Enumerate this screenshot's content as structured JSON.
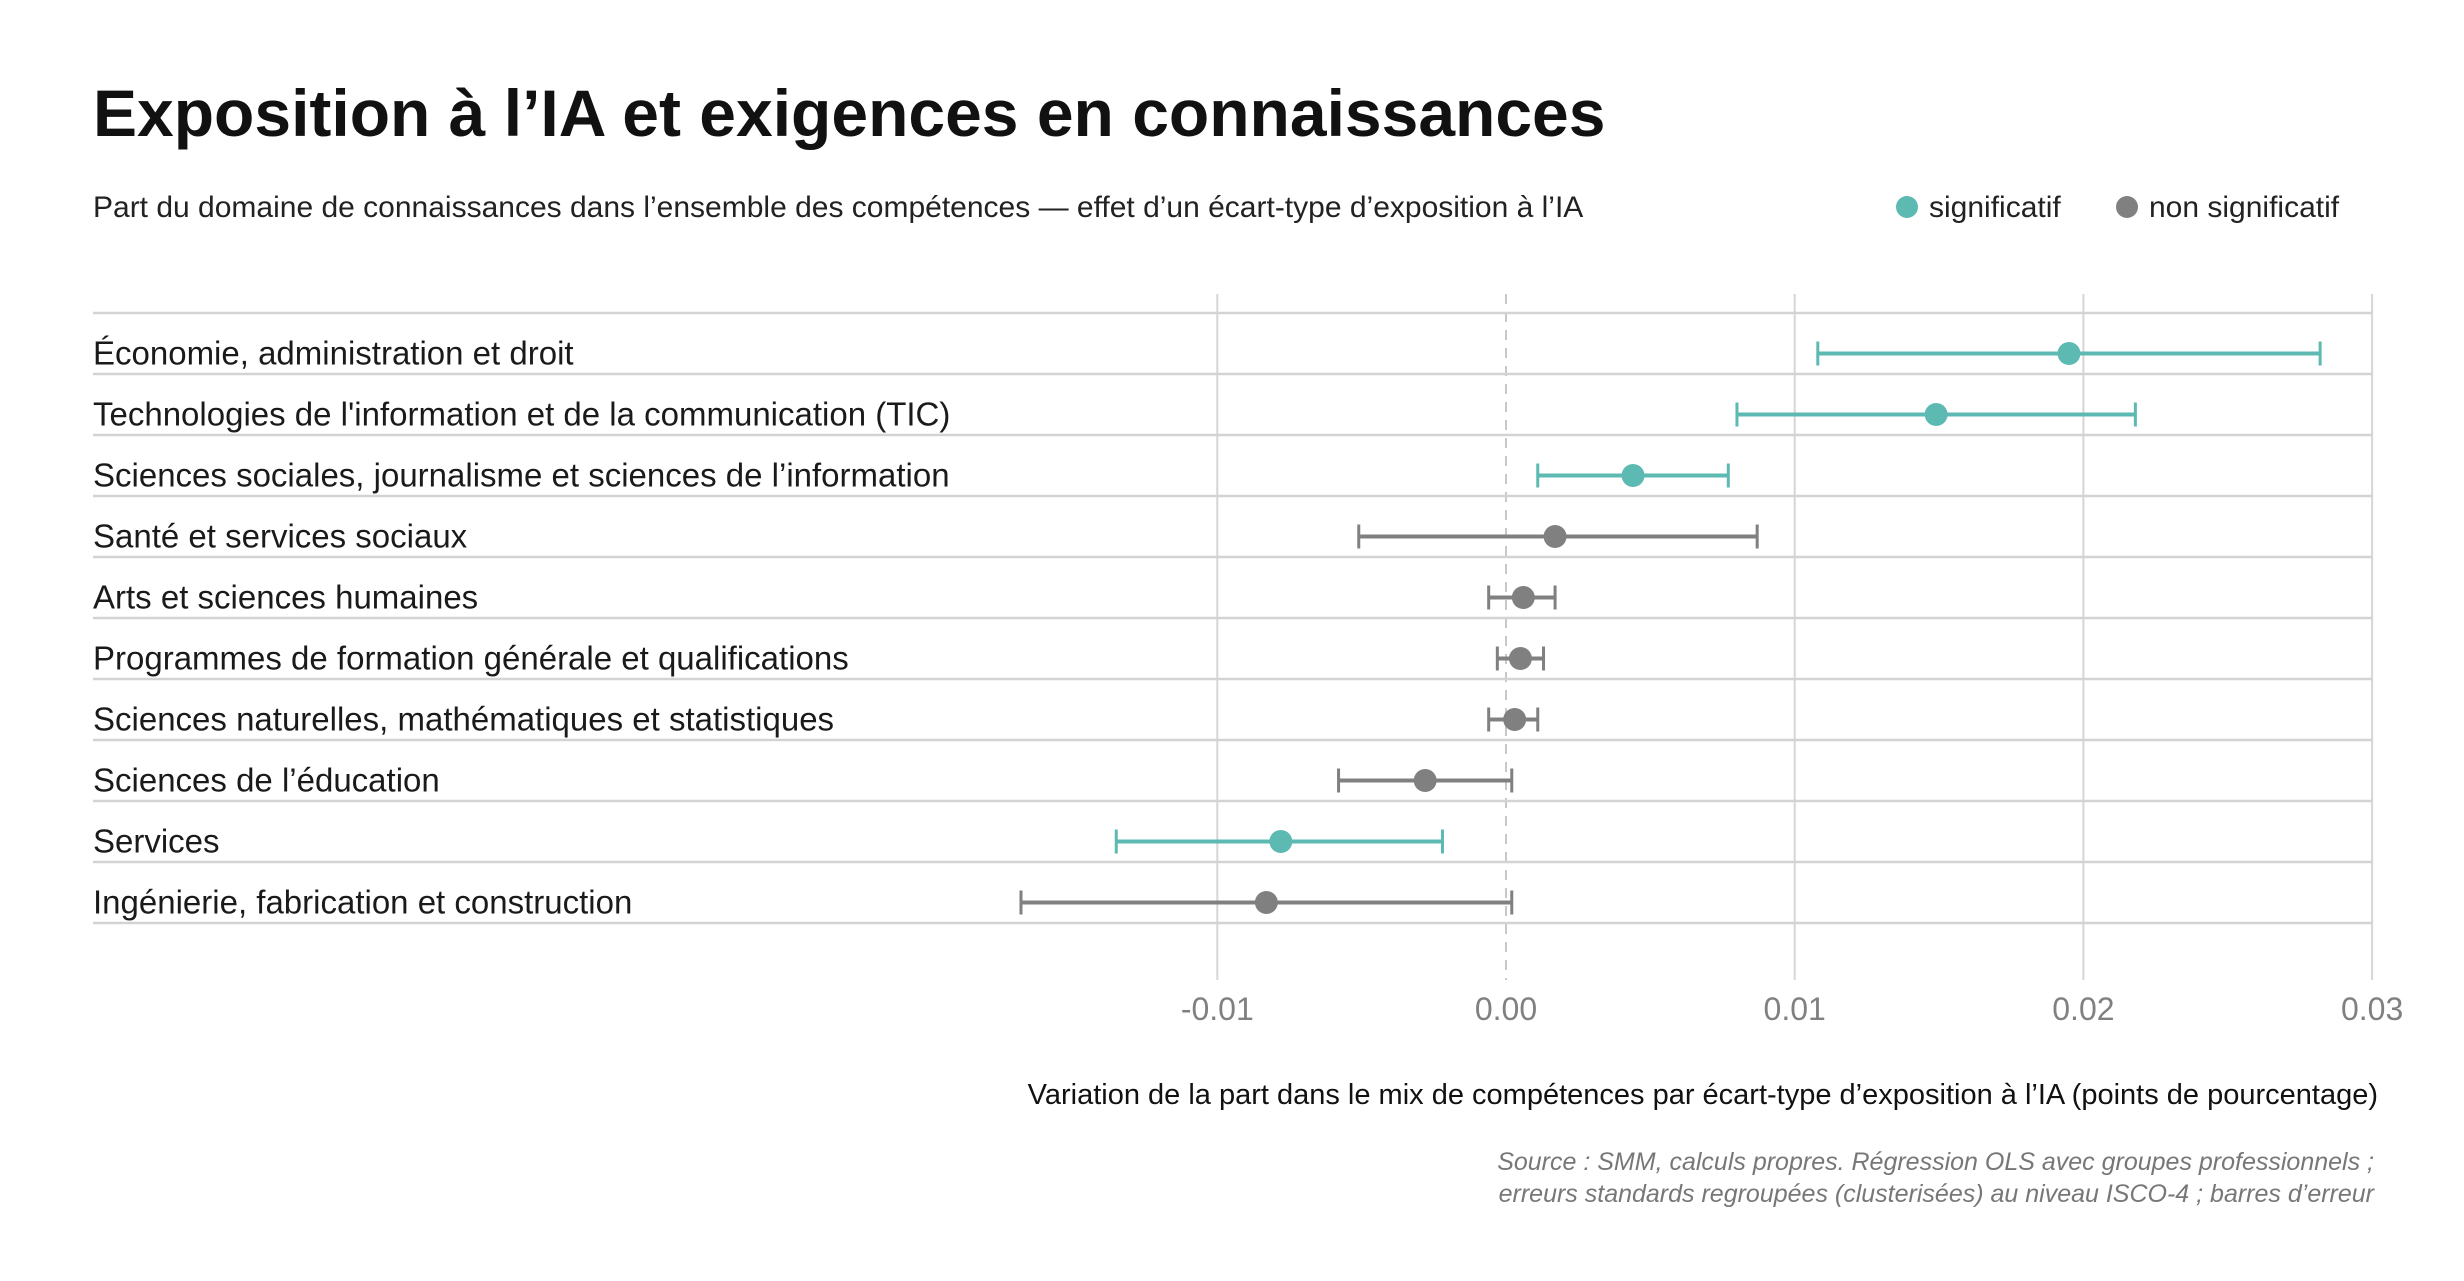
{
  "chart_data": {
    "type": "errorbar",
    "title": "Exposition à l’IA et exigences en connaissances",
    "subtitle": "Part du domaine de connaissances dans l’ensemble des compétences — effet d’un écart-type d’exposition à l’IA",
    "legend": [
      {
        "name": "significatif",
        "color": "#5cbab2"
      },
      {
        "name": "non significatif",
        "color": "#808080"
      }
    ],
    "legend_position": "top-right",
    "xlabel": "Variation de la part dans le mix de compétences par écart-type d’exposition à l’IA (points de pourcentage)",
    "xlim": [
      -0.0195,
      0.03
    ],
    "xticks": [
      -0.01,
      0.0,
      0.01,
      0.02,
      0.03
    ],
    "xtick_labels": [
      "-0.01",
      "0.00",
      "0.01",
      "0.02",
      "0.03"
    ],
    "reference_line": 0.0,
    "grid": true,
    "categories": [
      "Économie, administration et droit",
      "Technologies de l'information et de la communication (TIC)",
      "Sciences sociales, journalisme et sciences de l’information",
      "Santé et services sociaux",
      "Arts et sciences humaines",
      "Programmes de formation générale et qualifications",
      "Sciences naturelles, mathématiques et statistiques",
      "Sciences de l’éducation",
      "Services",
      "Ingénierie, fabrication et construction"
    ],
    "values": [
      0.0195,
      0.0149,
      0.0044,
      0.0017,
      0.0006,
      0.0005,
      0.0003,
      -0.0028,
      -0.0078,
      -0.0083
    ],
    "ci_low": [
      0.0108,
      0.008,
      0.0011,
      -0.0051,
      -0.0006,
      -0.0003,
      -0.0006,
      -0.0058,
      -0.0135,
      -0.0168
    ],
    "ci_high": [
      0.0282,
      0.0218,
      0.0077,
      0.0087,
      0.0017,
      0.0013,
      0.0011,
      0.0002,
      -0.0022,
      0.0002
    ],
    "significant": [
      true,
      true,
      true,
      false,
      false,
      false,
      false,
      false,
      true,
      false
    ],
    "source_lines": [
      "Source : SMM, calculs propres. Régression OLS avec groupes professionnels ;",
      "erreurs standards regroupées (clusterisées) au niveau ISCO-4 ; barres d’erreur"
    ]
  }
}
